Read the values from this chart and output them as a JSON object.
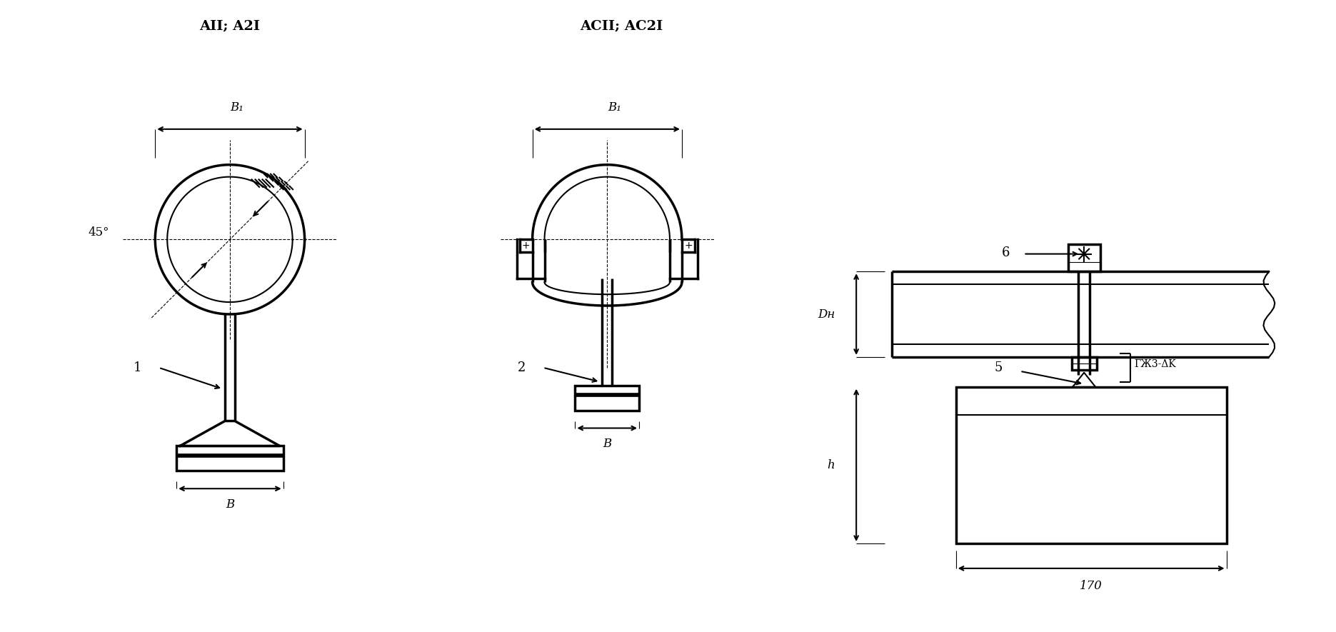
{
  "bg_color": "#ffffff",
  "line_color": "#000000",
  "fig_width": 18.71,
  "fig_height": 8.85,
  "title1": "AII; A2I",
  "title2": "ACII; AC2I",
  "label_B1": "B₁",
  "label_B": "B",
  "label_45": "45°",
  "label_Dh": "Dн",
  "label_h": "h",
  "label_170": "170",
  "label_6": "6",
  "label_5": "5",
  "label_1": "1",
  "label_2": "2",
  "label_T3": "ГЖ3-ΔK",
  "lw": 1.5,
  "lw_thick": 2.5
}
